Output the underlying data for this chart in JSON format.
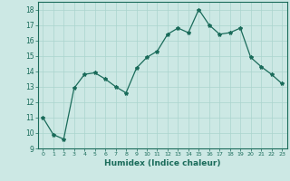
{
  "x": [
    0,
    1,
    2,
    3,
    4,
    5,
    6,
    7,
    8,
    9,
    10,
    11,
    12,
    13,
    14,
    15,
    16,
    17,
    18,
    19,
    20,
    21,
    22,
    23
  ],
  "y": [
    11.0,
    9.9,
    9.6,
    12.9,
    13.8,
    13.9,
    13.5,
    13.0,
    12.6,
    14.2,
    14.9,
    15.3,
    16.4,
    16.8,
    16.5,
    18.0,
    17.0,
    16.4,
    16.5,
    16.8,
    14.9,
    14.3,
    13.8,
    13.2
  ],
  "line_color": "#1a6b5a",
  "marker": "*",
  "marker_size": 3,
  "bg_color": "#cce8e4",
  "grid_major_color": "#aad4ce",
  "grid_minor_color": "#bbddda",
  "xlabel": "Humidex (Indice chaleur)",
  "xlim": [
    -0.5,
    23.5
  ],
  "ylim": [
    9,
    18.5
  ],
  "yticks": [
    9,
    10,
    11,
    12,
    13,
    14,
    15,
    16,
    17,
    18
  ],
  "xticks": [
    0,
    1,
    2,
    3,
    4,
    5,
    6,
    7,
    8,
    9,
    10,
    11,
    12,
    13,
    14,
    15,
    16,
    17,
    18,
    19,
    20,
    21,
    22,
    23
  ]
}
